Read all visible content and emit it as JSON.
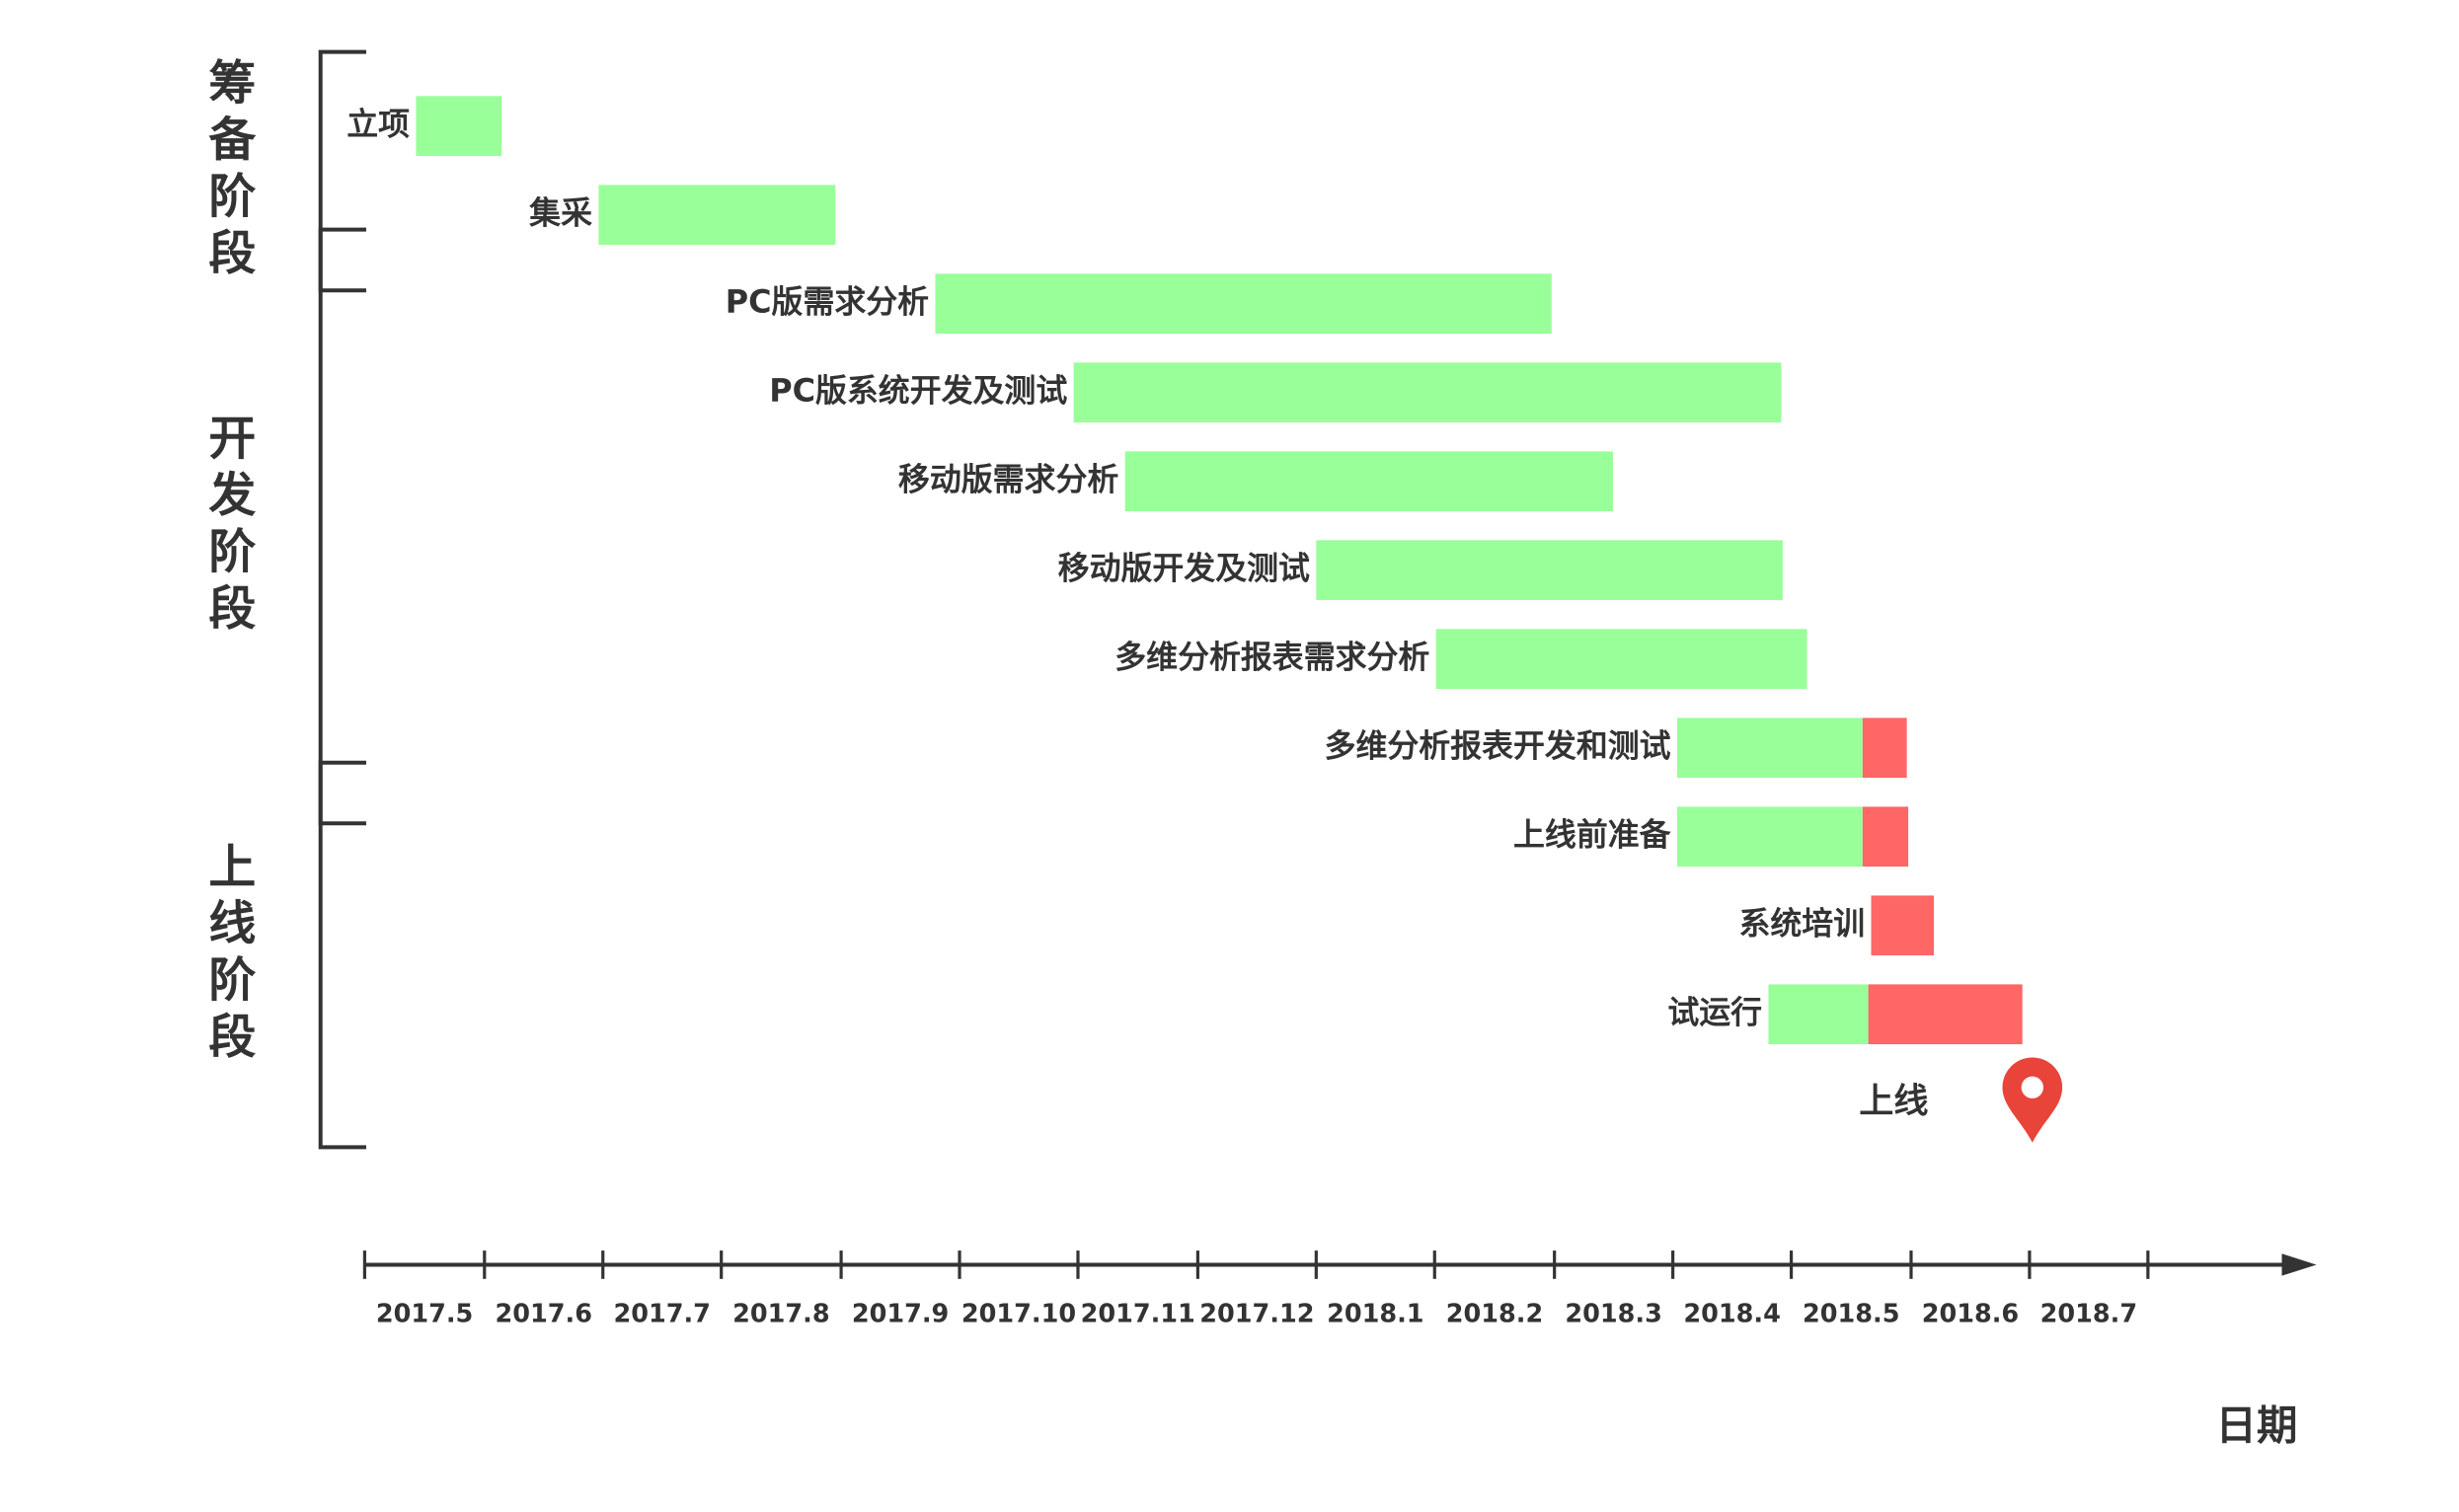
{
  "chart_data": {
    "type": "gantt",
    "x_label": "日期",
    "xlim": [
      2017.333,
      2018.583
    ],
    "xticks": [
      2017.333,
      2017.417,
      2017.5,
      2017.583,
      2017.667,
      2017.75,
      2017.833,
      2017.917,
      2018.0,
      2018.083,
      2018.167,
      2018.25,
      2018.333,
      2018.417,
      2018.5,
      2018.583
    ],
    "categories": [
      "2017.5",
      "2017.6",
      "2017.7",
      "2017.8",
      "2017.9",
      "2017.10",
      "2017.11",
      "2017.12",
      "2018.1",
      "2018.2",
      "2018.3",
      "2018.4",
      "2018.5",
      "2018.6",
      "2018.7"
    ],
    "plan_color": "#99ff99",
    "delay_color": "#ff6666",
    "phases": [
      {
        "label": "筹备阶段",
        "tasks": [
          {
            "name": "立项",
            "plan": [
              2017.369,
              2017.429
            ]
          },
          {
            "name": "集采",
            "plan": [
              2017.497,
              2017.663
            ]
          }
        ]
      },
      {
        "label": "开发阶段",
        "tasks": [
          {
            "name": "PC版需求分析",
            "plan": [
              2017.733,
              2018.165
            ]
          },
          {
            "name": "PC版系统开发及测试",
            "plan": [
              2017.83,
              2018.326
            ]
          },
          {
            "name": "移动版需求分析",
            "plan": [
              2017.866,
              2018.208
            ]
          },
          {
            "name": "移动版开发及测试",
            "plan": [
              2018.0,
              2018.327
            ]
          },
          {
            "name": "多维分析报表需求分析",
            "plan": [
              2018.084,
              2018.344
            ]
          },
          {
            "name": "多维分析报表开发和测试",
            "plan": [
              2018.253,
              2018.383
            ],
            "delay": [
              2018.383,
              2018.414
            ]
          }
        ]
      },
      {
        "label": "上线阶段",
        "tasks": [
          {
            "name": "上线前准备",
            "plan": [
              2018.253,
              2018.383
            ],
            "delay": [
              2018.383,
              2018.415
            ]
          },
          {
            "name": "系统培训",
            "delay": [
              2018.389,
              2018.433
            ]
          },
          {
            "name": "试运行",
            "plan": [
              2018.317,
              2018.387
            ],
            "delay": [
              2018.387,
              2018.495
            ]
          }
        ],
        "milestone": {
          "label": "上线",
          "x": 2018.502
        }
      }
    ]
  }
}
